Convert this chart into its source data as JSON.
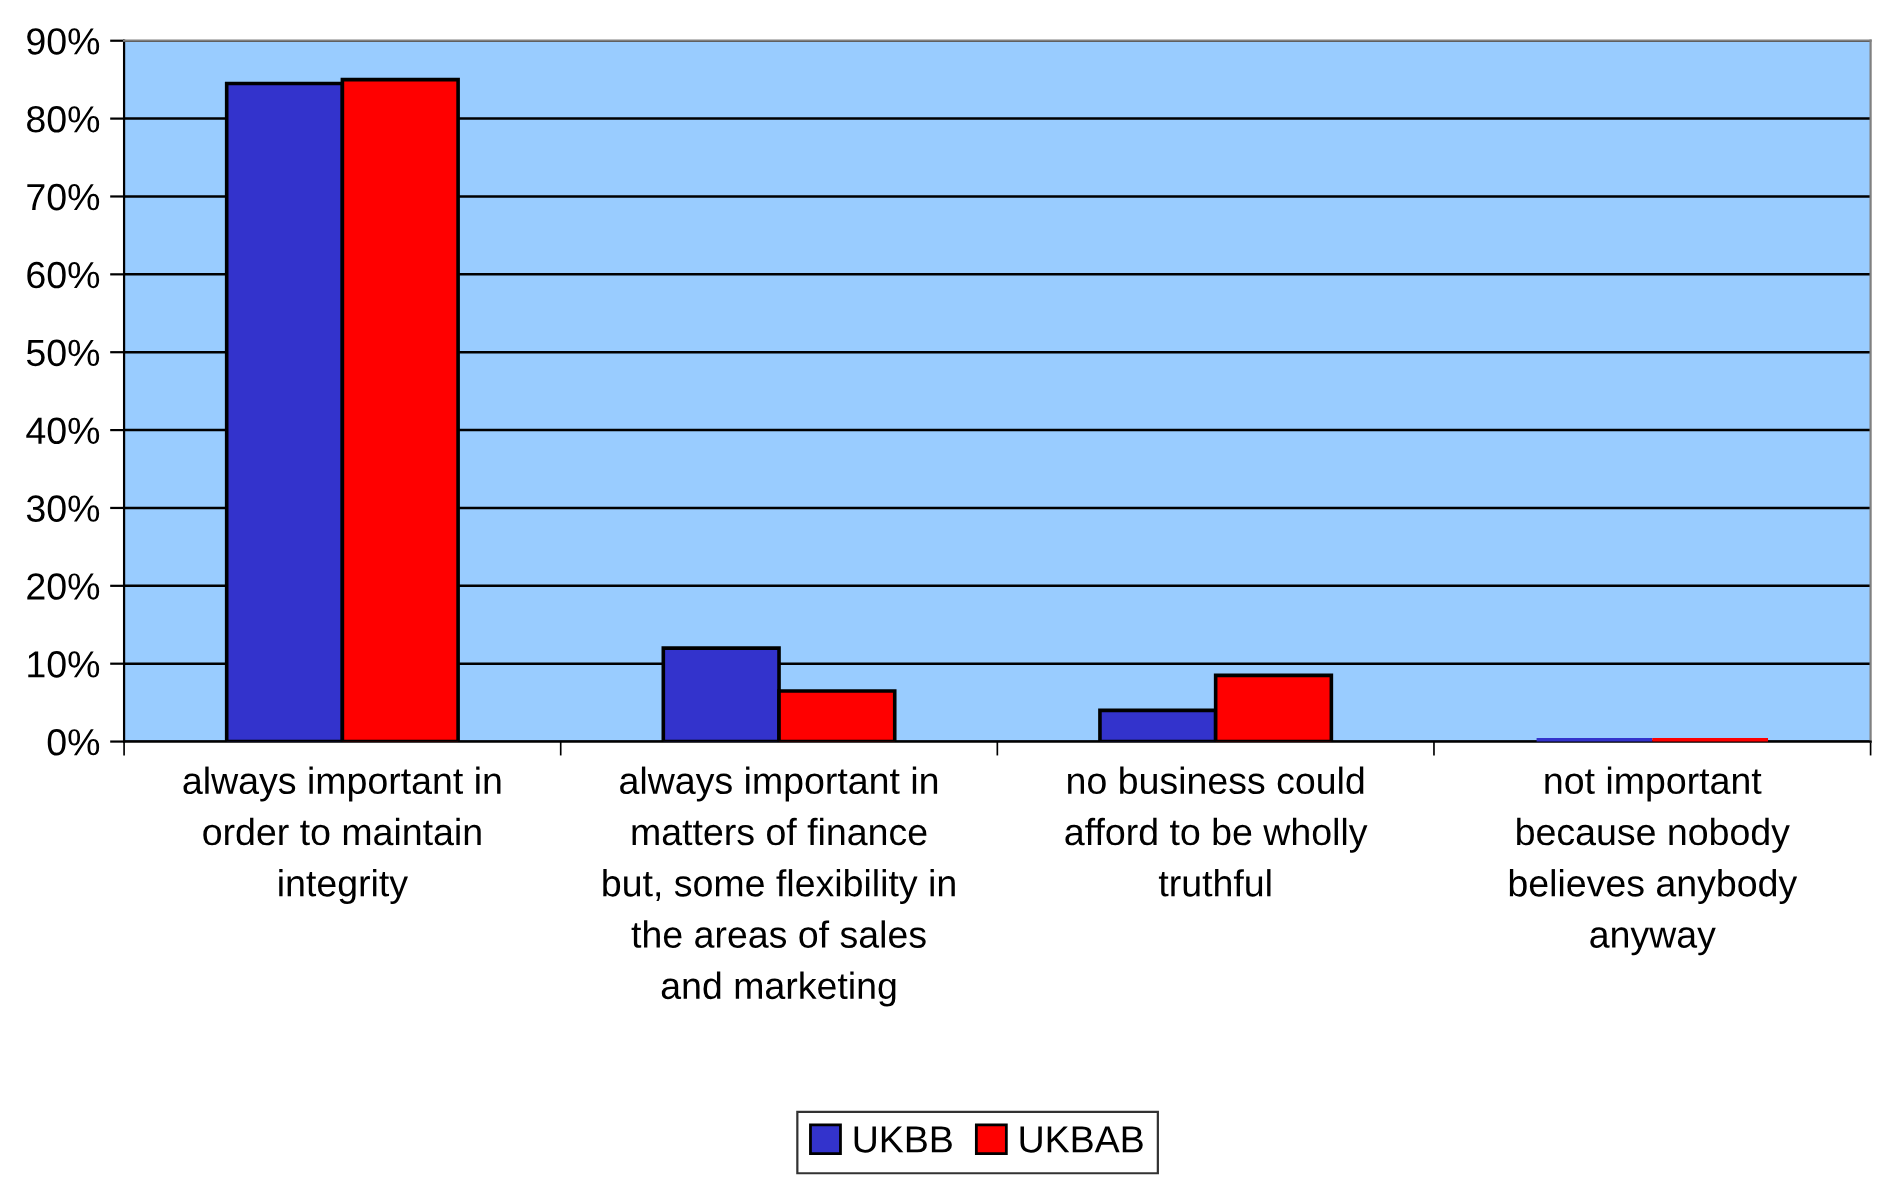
{
  "chart_data": {
    "type": "bar",
    "categories": [
      "always important in\norder to maintain\nintegrity",
      "always important in\nmatters of finance\nbut, some flexibility in\nthe areas of sales\nand marketing",
      "no business could\nafford to be wholly\ntruthful",
      "not important\nbecause nobody\nbelieves anybody\nanyway"
    ],
    "series": [
      {
        "name": "UKBB",
        "color": "#3333cc",
        "values": [
          84.5,
          12,
          4,
          0
        ]
      },
      {
        "name": "UKBAB",
        "color": "#ff0000",
        "values": [
          85,
          6.5,
          8.5,
          0
        ]
      }
    ],
    "ylim": [
      0,
      90
    ],
    "yticks": [
      {
        "value": 0,
        "label": "0%"
      },
      {
        "value": 10,
        "label": "10%"
      },
      {
        "value": 20,
        "label": "20%"
      },
      {
        "value": 30,
        "label": "30%"
      },
      {
        "value": 40,
        "label": "40%"
      },
      {
        "value": 50,
        "label": "50%"
      },
      {
        "value": 60,
        "label": "60%"
      },
      {
        "value": 70,
        "label": "70%"
      },
      {
        "value": 80,
        "label": "80%"
      },
      {
        "value": 90,
        "label": "90%"
      }
    ],
    "grid": "y",
    "legend": "bottom"
  }
}
